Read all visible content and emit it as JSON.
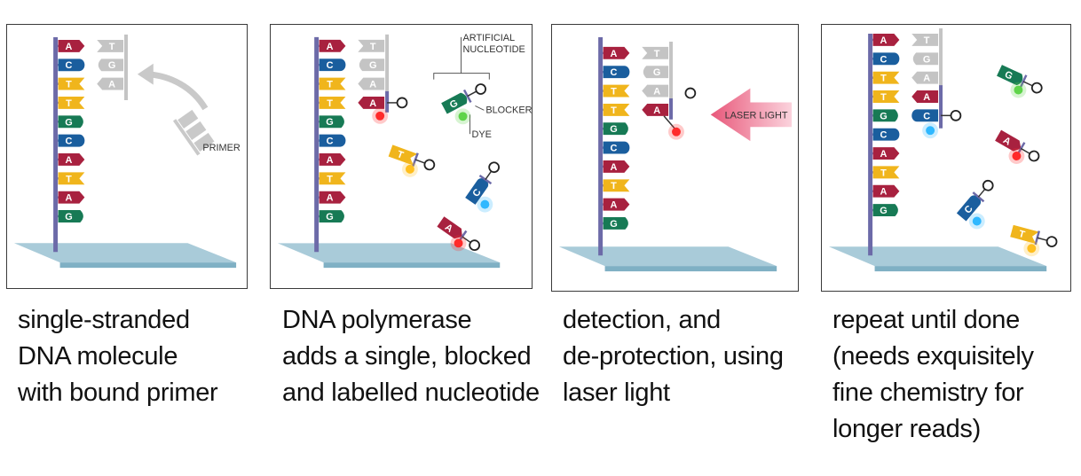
{
  "colors": {
    "A": "#a8213f",
    "T": "#f0b51c",
    "G": "#177a55",
    "C": "#1a5e9e",
    "primer": "#c4c4c4",
    "backbone": "#6c6aa8",
    "laser": "#e8587a"
  },
  "panels": [
    {
      "id": "p1",
      "template": [
        "A",
        "C",
        "T",
        "T",
        "G",
        "C",
        "A",
        "T",
        "A",
        "G"
      ],
      "primer": [
        "T",
        "G",
        "A"
      ],
      "labels": {
        "primer": "PRIMER"
      },
      "caption": [
        "single-stranded",
        "DNA molecule",
        "with bound primer"
      ]
    },
    {
      "id": "p2",
      "template": [
        "A",
        "C",
        "T",
        "T",
        "G",
        "C",
        "A",
        "T",
        "A",
        "G"
      ],
      "primer": [
        "T",
        "G",
        "A"
      ],
      "added": "A",
      "labels": {
        "artificial": [
          "ARTIFICIAL",
          "NUCLEOTIDE"
        ],
        "blocker": "BLOCKER",
        "dye": "DYE"
      },
      "free_nucleotides": [
        "G",
        "T",
        "C",
        "A"
      ],
      "caption": [
        "DNA polymerase",
        "adds a single, blocked",
        "and labelled nucleotide"
      ]
    },
    {
      "id": "p3",
      "template": [
        "A",
        "C",
        "T",
        "T",
        "G",
        "C",
        "A",
        "T",
        "A",
        "G"
      ],
      "primer": [
        "T",
        "G",
        "A"
      ],
      "added": "A",
      "labels": {
        "laser": "LASER LIGHT"
      },
      "caption": [
        "detection, and",
        "de-protection, using",
        "laser light"
      ]
    },
    {
      "id": "p4",
      "template": [
        "A",
        "C",
        "T",
        "T",
        "G",
        "C",
        "A",
        "T",
        "A",
        "G"
      ],
      "primer": [
        "T",
        "G",
        "A"
      ],
      "added": [
        "A",
        "C"
      ],
      "free_nucleotides": [
        "G",
        "A",
        "C",
        "T"
      ],
      "caption": [
        "repeat until done",
        "(needs exquisitely",
        "fine chemistry for",
        "longer reads)"
      ]
    }
  ]
}
